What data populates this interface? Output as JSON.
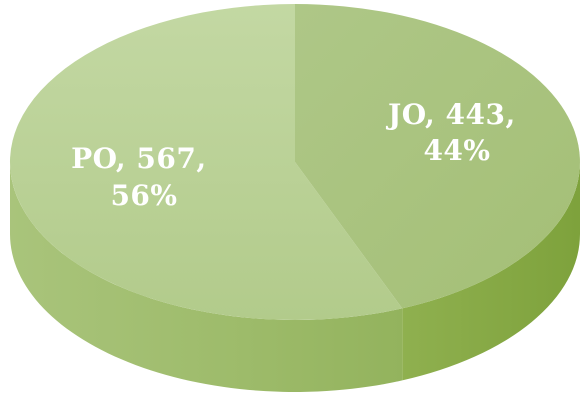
{
  "chart_data": {
    "type": "pie",
    "style": "3d",
    "slices": [
      {
        "category": "JO",
        "value": 443,
        "percent": "44%",
        "line1": "JO, 443,",
        "line2": "44%"
      },
      {
        "category": "PO",
        "value": 567,
        "percent": "56%",
        "line1": "PO, 567,",
        "line2": "56%"
      }
    ],
    "colors": {
      "jo_top": "#a9c27e",
      "po_top": "#b9d196",
      "jo_side": "#86aa45",
      "po_side": "#9ebd6d"
    },
    "legend": "none",
    "title": ""
  }
}
